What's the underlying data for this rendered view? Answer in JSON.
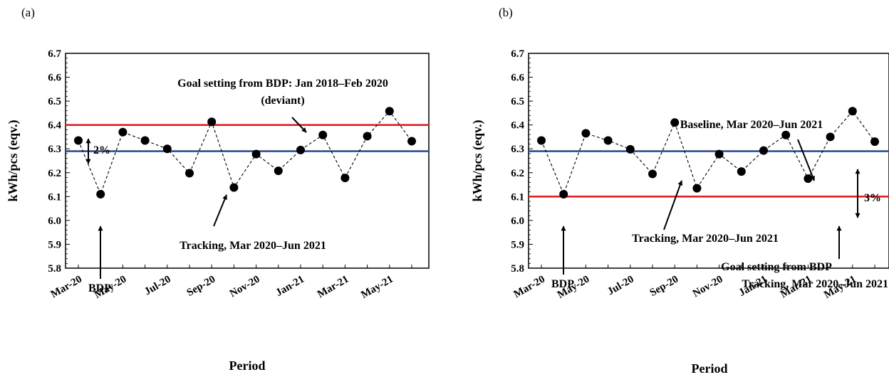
{
  "chart_data": [
    {
      "type": "line",
      "panel_label": "(a)",
      "xlabel": "Period",
      "ylabel": "kWh/pcs  (eqv.)",
      "ylim": [
        5.8,
        6.7
      ],
      "yticks": [
        "5.8",
        "5.9",
        "6.0",
        "6.1",
        "6.2",
        "6.3",
        "6.4",
        "6.5",
        "6.6",
        "6.7"
      ],
      "xticks": [
        "Mar-20",
        "May-20",
        "Jul-20",
        "Sep-20",
        "Nov-20",
        "Jan-21",
        "Mar-21",
        "May-21"
      ],
      "grid": false,
      "legend": "none",
      "series": [
        {
          "values": [
            6.335,
            6.11,
            6.37,
            6.335,
            6.3,
            6.198,
            6.413,
            6.138,
            6.278,
            6.208,
            6.295,
            6.358,
            6.178,
            6.353,
            6.458,
            6.332
          ],
          "style": "dashed",
          "color": "#000000",
          "marker": "circle"
        }
      ],
      "reference_lines": [
        {
          "value": 6.4,
          "color": "#e31e24"
        },
        {
          "value": 6.29,
          "color": "#2e4f94"
        }
      ],
      "annotations": {
        "goal": "Goal setting from BDP: Jan 2018–Feb 2020",
        "goal_2": "(deviant)",
        "tracking": "Tracking, Mar 2020–Jun 2021",
        "bdp": "BDP",
        "pct": "2%"
      }
    },
    {
      "type": "line",
      "panel_label": "(b)",
      "xlabel": "Period",
      "ylabel": "kWh/pcs  (eqv.)",
      "ylim": [
        5.8,
        6.7
      ],
      "yticks": [
        "5.8",
        "5.9",
        "6.0",
        "6.1",
        "6.2",
        "6.3",
        "6.4",
        "6.5",
        "6.6",
        "6.7"
      ],
      "xticks": [
        "Mar-20",
        "May-20",
        "Jul-20",
        "Sep-20",
        "Nov-20",
        "Jan-21",
        "Mar-21",
        "May-21"
      ],
      "grid": false,
      "legend": "none",
      "series": [
        {
          "values": [
            6.335,
            6.11,
            6.365,
            6.335,
            6.298,
            6.195,
            6.41,
            6.135,
            6.278,
            6.205,
            6.293,
            6.358,
            6.175,
            6.35,
            6.458,
            6.33
          ],
          "style": "dashed",
          "color": "#000000",
          "marker": "circle"
        }
      ],
      "reference_lines": [
        {
          "value": 6.29,
          "color": "#2e4f94"
        },
        {
          "value": 6.1,
          "color": "#e31e24"
        }
      ],
      "annotations": {
        "baseline": "Baseline, Mar 2020–Jun 2021",
        "tracking": "Tracking, Mar 2020–Jun 2021",
        "goal": "Goal setting from BDP",
        "goal_2": "Tracking, Mar 2020–Jun 2021",
        "bdp": "BDP",
        "pct": "3%"
      }
    }
  ]
}
